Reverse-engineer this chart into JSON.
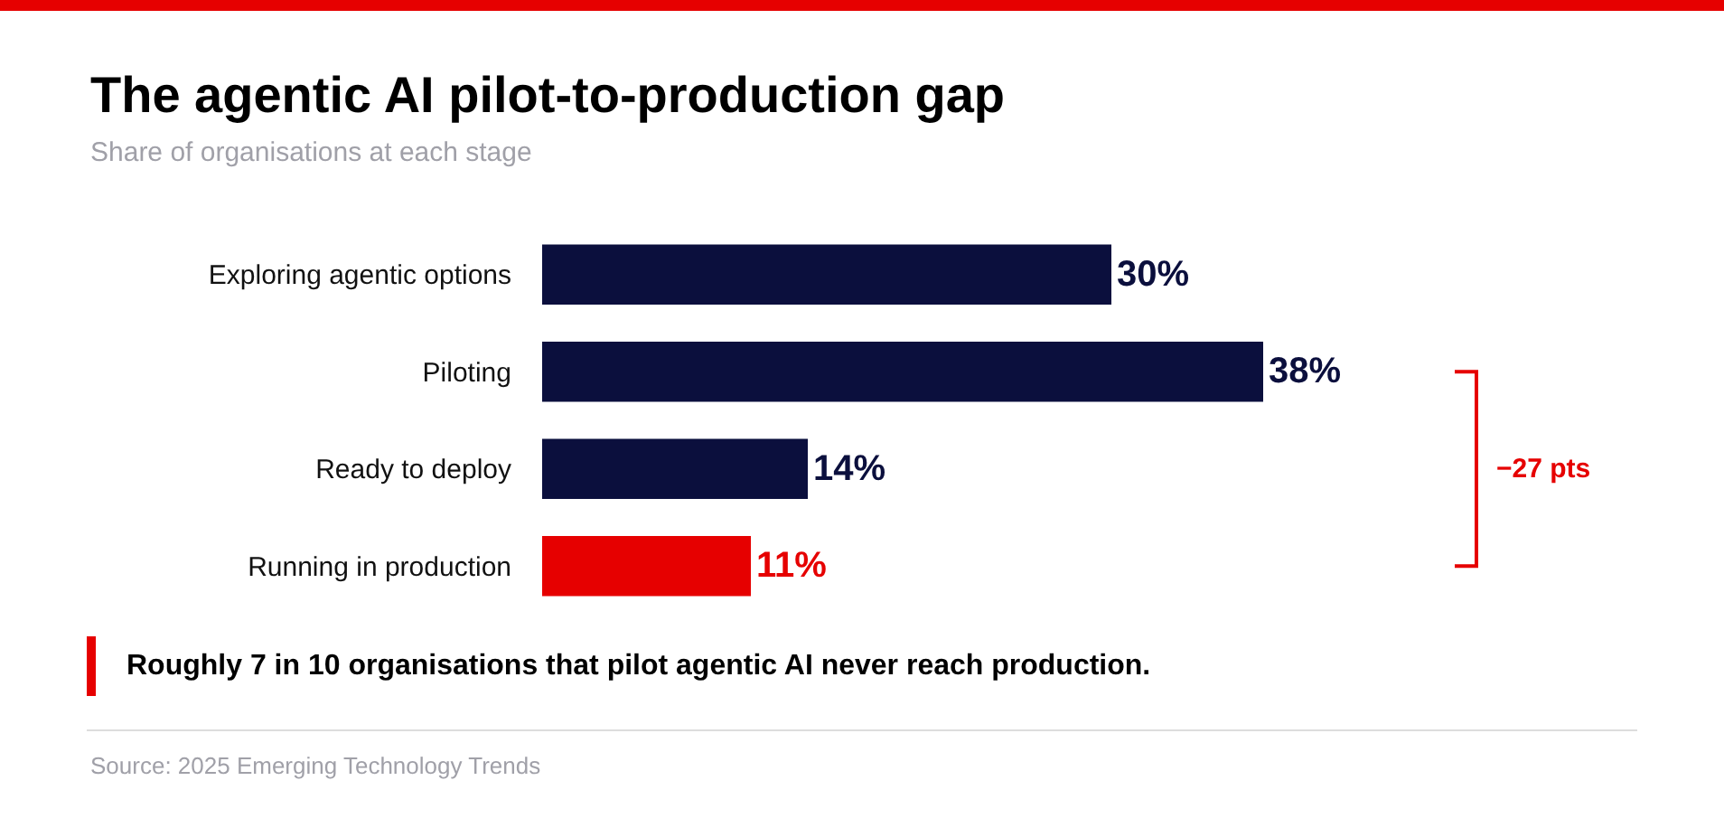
{
  "chart_data": {
    "type": "bar",
    "orientation": "horizontal",
    "title": "The agentic AI pilot-to-production gap",
    "subtitle": "Share of organisations at each stage",
    "categories": [
      "Exploring agentic options",
      "Piloting",
      "Ready to deploy",
      "Running in production"
    ],
    "values": [
      30,
      38,
      14,
      11
    ],
    "colors": [
      "#0b0f3d",
      "#0b0f3d",
      "#0b0f3d",
      "#e60000"
    ],
    "value_labels": [
      "30%",
      "38%",
      "14%",
      "11%"
    ],
    "annotations": [
      "−27 pts",
      "Roughly 7 in 10 organisations that pilot agentic AI never reach production.",
      "Source: 2025 Emerging Technology Trends"
    ]
  }
}
